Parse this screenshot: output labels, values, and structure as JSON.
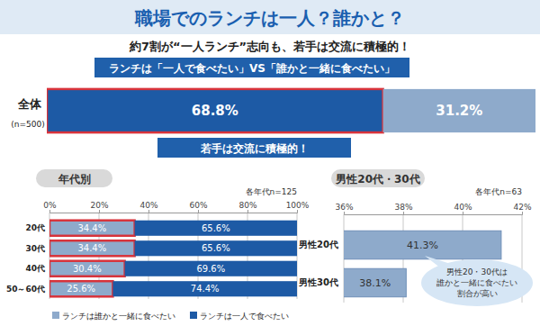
{
  "header": {
    "title": "職場でのランチは一人？誰かと？",
    "subtitle": "約7割が“一人ランチ”志向も、若手は交流に積極的！"
  },
  "banner": "若手は交流に積極的！",
  "chart_data": [
    {
      "type": "bar",
      "title": "ランチは「一人で食べたい」VS「誰かと一緒に食べたい」",
      "orientation": "horizontal",
      "stacked": true,
      "data_labels": true,
      "tick_labels": "y",
      "categories": [
        "全体"
      ],
      "annotations": [
        "(n=500)"
      ],
      "xlim": [
        0,
        100
      ],
      "series": [
        {
          "color": "#1d5aa5",
          "values": [
            68.8
          ],
          "value_labels": [
            "68.8%"
          ]
        },
        {
          "color": "#8eaacb",
          "values": [
            31.2
          ],
          "value_labels": [
            "31.2%"
          ]
        }
      ]
    },
    {
      "type": "bar",
      "title": "年代別",
      "subtitle": "各年代n=125",
      "orientation": "horizontal",
      "stacked": true,
      "data_labels": true,
      "grid": true,
      "legend": "bottom",
      "categories": [
        "20代",
        "30代",
        "40代",
        "50～60代"
      ],
      "xlim": [
        0,
        100
      ],
      "xticks": [
        {
          "value": 0,
          "label": "0%"
        },
        {
          "value": 20,
          "label": "20%"
        },
        {
          "value": 40,
          "label": "40%"
        },
        {
          "value": 60,
          "label": "60%"
        },
        {
          "value": 80,
          "label": "80%"
        },
        {
          "value": 100,
          "label": "100%"
        }
      ],
      "series": [
        {
          "name": "ランチは誰かと一緒に食べたい",
          "color": "#8eaacb",
          "values": [
            34.4,
            34.4,
            30.4,
            25.6
          ],
          "value_labels": [
            "34.4%",
            "34.4%",
            "30.4%",
            "25.6%"
          ]
        },
        {
          "name": "ランチは一人で食べたい",
          "color": "#1d5aa5",
          "values": [
            65.6,
            65.6,
            69.6,
            74.4
          ],
          "value_labels": [
            "65.6%",
            "65.6%",
            "69.6%",
            "74.4%"
          ]
        }
      ]
    },
    {
      "type": "bar",
      "title": "男性20代・30代",
      "subtitle": "各年代n=63",
      "orientation": "horizontal",
      "data_labels": true,
      "grid": true,
      "categories": [
        "男性20代",
        "男性30代"
      ],
      "values": [
        41.3,
        38.1
      ],
      "value_labels": [
        "41.3%",
        "38.1%"
      ],
      "color": "#8eaacb",
      "xlim": [
        36,
        42
      ],
      "xticks": [
        {
          "value": 36,
          "label": "36%"
        },
        {
          "value": 38,
          "label": "38%"
        },
        {
          "value": 40,
          "label": "40%"
        },
        {
          "value": 42,
          "label": "42%"
        }
      ],
      "annotations": [
        "男性20・30代は\n誰かと一緒に食べたい\n割合が高い"
      ]
    }
  ]
}
